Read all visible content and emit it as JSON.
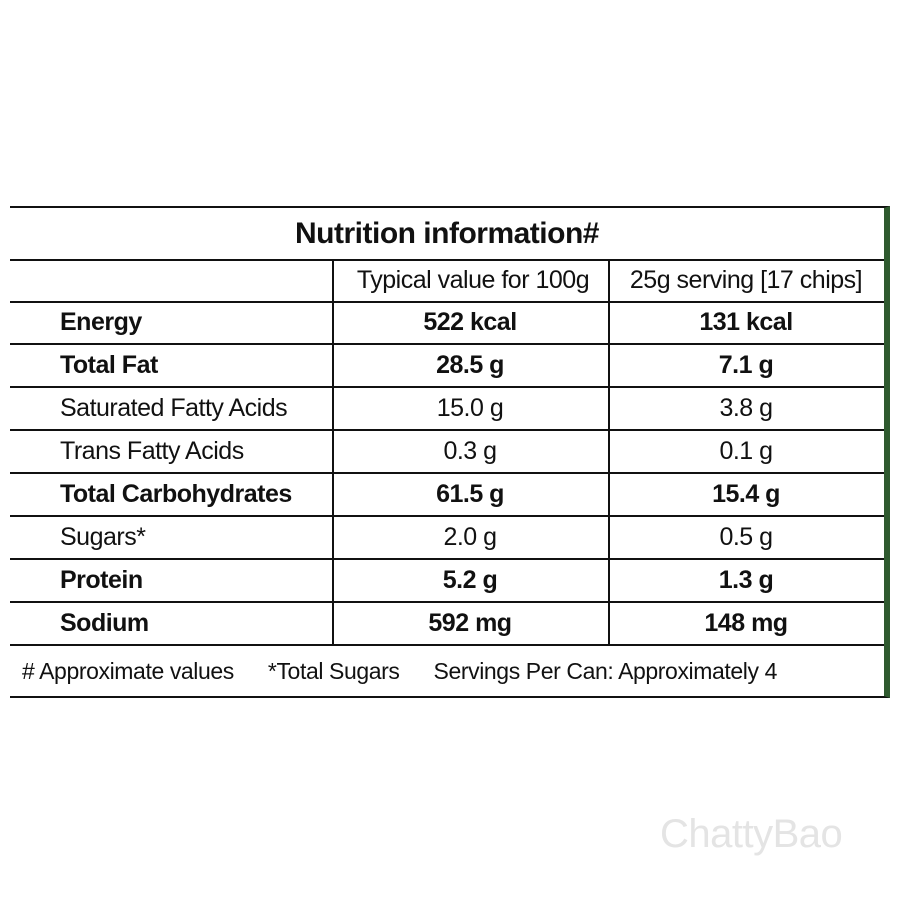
{
  "table": {
    "title": "Nutrition information#",
    "columns": [
      "Typical value for 100g",
      "25g serving [17 chips]"
    ],
    "rows": [
      {
        "label": "Energy",
        "per_100g": "522 kcal",
        "per_serving": "131 kcal",
        "bold": true
      },
      {
        "label": "Total Fat",
        "per_100g": "28.5 g",
        "per_serving": "7.1 g",
        "bold": true
      },
      {
        "label": "Saturated Fatty Acids",
        "per_100g": "15.0 g",
        "per_serving": "3.8 g",
        "bold": false
      },
      {
        "label": "Trans Fatty Acids",
        "per_100g": "0.3 g",
        "per_serving": "0.1 g",
        "bold": false
      },
      {
        "label": "Total Carbohydrates",
        "per_100g": "61.5 g",
        "per_serving": "15.4 g",
        "bold": true
      },
      {
        "label": "Sugars*",
        "per_100g": "2.0 g",
        "per_serving": "0.5 g",
        "bold": false
      },
      {
        "label": "Protein",
        "per_100g": "5.2 g",
        "per_serving": "1.3 g",
        "bold": true
      },
      {
        "label": "Sodium",
        "per_100g": "592 mg",
        "per_serving": "148 mg",
        "bold": true
      }
    ],
    "footnotes": [
      "# Approximate values",
      "*Total Sugars",
      "Servings Per Can: Approximately 4"
    ]
  },
  "watermark": "ChattyBao"
}
